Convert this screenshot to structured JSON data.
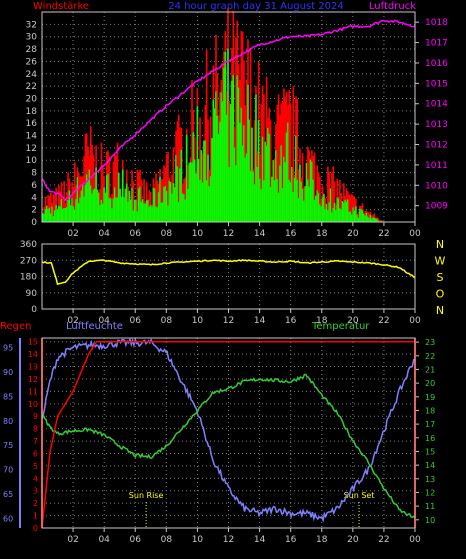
{
  "colors": {
    "background": "#000000",
    "frame": "#c8c8c8",
    "grid": "#808080",
    "wind_red": "#ff0000",
    "wind_green": "#00ff00",
    "pressure": "#ff00ff",
    "direction": "#ffff00",
    "humidity": "#8080ff",
    "temperature": "#33cc33",
    "rain": "#ff0000",
    "direction_letters": "#ffff00",
    "sun_labels": "#ffff00"
  },
  "header": {
    "left_label": "Windstärke",
    "center_label": "24 hour graph day 31 August 2024",
    "right_label": "Luftdruck"
  },
  "bottom_header": {
    "rain_label": "Regen",
    "humidity_label": "Luftfeuchte",
    "temperature_label": "Temperatur"
  },
  "direction_letters": [
    "N",
    "W",
    "S",
    "O",
    "N"
  ],
  "sun": {
    "rise_label": "Sun Rise",
    "set_label": "Sun Set"
  },
  "x_ticks": [
    "02",
    "04",
    "06",
    "08",
    "10",
    "12",
    "14",
    "16",
    "18",
    "20",
    "22",
    "00"
  ],
  "chart_data": [
    {
      "type": "bar",
      "name": "wind",
      "ylim": [
        0,
        34
      ],
      "y_ticks": [
        "0",
        "2",
        "4",
        "6",
        "8",
        "10",
        "12",
        "14",
        "16",
        "18",
        "20",
        "22",
        "24",
        "26",
        "28",
        "30",
        "32"
      ],
      "right_axis": {
        "ylim": [
          1008.2,
          1018.5
        ],
        "ticks": [
          "1009",
          "1010",
          "1011",
          "1012",
          "1013",
          "1014",
          "1015",
          "1016",
          "1017",
          "1018"
        ]
      },
      "x_hours": [
        0,
        24
      ],
      "gust_profile": [
        [
          0,
          4
        ],
        [
          1,
          5
        ],
        [
          2,
          8
        ],
        [
          3,
          14
        ],
        [
          4,
          10
        ],
        [
          5,
          12
        ],
        [
          6,
          8
        ],
        [
          7,
          5
        ],
        [
          8,
          11
        ],
        [
          9,
          16
        ],
        [
          10,
          21
        ],
        [
          11,
          25
        ],
        [
          12,
          30
        ],
        [
          13,
          28
        ],
        [
          14,
          22
        ],
        [
          15,
          18
        ],
        [
          16,
          20
        ],
        [
          17,
          13
        ],
        [
          18,
          9
        ],
        [
          19,
          7
        ],
        [
          20,
          4
        ],
        [
          21,
          2
        ],
        [
          22,
          0
        ],
        [
          23,
          0
        ],
        [
          24,
          0
        ]
      ],
      "avg_profile": [
        [
          0,
          2
        ],
        [
          1,
          2
        ],
        [
          2,
          4
        ],
        [
          3,
          7
        ],
        [
          4,
          5
        ],
        [
          5,
          6
        ],
        [
          6,
          4
        ],
        [
          7,
          3
        ],
        [
          8,
          6
        ],
        [
          9,
          8
        ],
        [
          10,
          12
        ],
        [
          11,
          15
        ],
        [
          12,
          18
        ],
        [
          13,
          17
        ],
        [
          14,
          13
        ],
        [
          15,
          10
        ],
        [
          16,
          11
        ],
        [
          17,
          7
        ],
        [
          18,
          5
        ],
        [
          19,
          3
        ],
        [
          20,
          2
        ],
        [
          21,
          1
        ],
        [
          22,
          0
        ],
        [
          23,
          0
        ],
        [
          24,
          0
        ]
      ],
      "pressure": [
        [
          0,
          1010.3
        ],
        [
          0.5,
          1009.7
        ],
        [
          1,
          1009.6
        ],
        [
          1.5,
          1009.3
        ],
        [
          2,
          1009.6
        ],
        [
          3,
          1010.3
        ],
        [
          4,
          1011.0
        ],
        [
          5,
          1011.8
        ],
        [
          6,
          1012.5
        ],
        [
          7,
          1013.2
        ],
        [
          8,
          1013.9
        ],
        [
          9,
          1014.5
        ],
        [
          10,
          1015.1
        ],
        [
          11,
          1015.6
        ],
        [
          12,
          1016.1
        ],
        [
          13,
          1016.5
        ],
        [
          14,
          1016.9
        ],
        [
          15,
          1017.1
        ],
        [
          16,
          1017.3
        ],
        [
          17,
          1017.3
        ],
        [
          18,
          1017.4
        ],
        [
          19,
          1017.6
        ],
        [
          20,
          1017.8
        ],
        [
          21,
          1017.8
        ],
        [
          22,
          1018.1
        ],
        [
          23,
          1018.0
        ],
        [
          24,
          1017.8
        ]
      ]
    },
    {
      "type": "line",
      "name": "wind direction",
      "ylim": [
        0,
        360
      ],
      "y_ticks": [
        "0",
        "90",
        "180",
        "270",
        "360"
      ],
      "x": [
        0,
        0.6,
        1,
        1.5,
        2,
        3,
        4,
        5,
        6,
        7,
        8,
        9,
        10,
        11,
        12,
        13,
        14,
        15,
        16,
        17,
        18,
        19,
        20,
        21,
        22,
        23,
        23.5,
        24
      ],
      "values": [
        260,
        255,
        140,
        150,
        200,
        265,
        270,
        255,
        250,
        245,
        255,
        260,
        265,
        270,
        265,
        270,
        265,
        260,
        265,
        255,
        260,
        265,
        260,
        255,
        245,
        230,
        200,
        175
      ]
    },
    {
      "type": "line",
      "name": "humidity / temperature / rain",
      "humidity_axis": {
        "ylim": [
          58,
          97
        ],
        "ticks": [
          "60",
          "65",
          "70",
          "75",
          "80",
          "85",
          "90",
          "95"
        ]
      },
      "rain_axis": {
        "ylim": [
          0,
          15.3
        ],
        "ticks": [
          "0",
          "1",
          "2",
          "3",
          "4",
          "5",
          "6",
          "7",
          "8",
          "9",
          "10",
          "11",
          "12",
          "13",
          "14",
          "15"
        ]
      },
      "temperature_axis": {
        "ylim": [
          9.4,
          23.3
        ],
        "ticks": [
          "10",
          "11",
          "12",
          "13",
          "14",
          "15",
          "16",
          "17",
          "18",
          "19",
          "20",
          "21",
          "22",
          "23"
        ]
      },
      "humidity": [
        [
          0,
          80
        ],
        [
          0.5,
          88
        ],
        [
          1,
          93
        ],
        [
          2,
          95
        ],
        [
          3,
          95.5
        ],
        [
          4,
          95.5
        ],
        [
          5,
          96
        ],
        [
          6,
          96
        ],
        [
          7,
          96
        ],
        [
          8,
          94
        ],
        [
          9,
          88
        ],
        [
          10,
          82
        ],
        [
          11,
          72
        ],
        [
          12,
          66
        ],
        [
          13,
          62
        ],
        [
          14,
          61
        ],
        [
          15,
          62
        ],
        [
          16,
          61
        ],
        [
          17,
          61
        ],
        [
          18,
          60
        ],
        [
          19,
          62
        ],
        [
          20,
          66
        ],
        [
          21,
          70
        ],
        [
          22,
          78
        ],
        [
          23,
          86
        ],
        [
          24,
          93
        ]
      ],
      "temperature": [
        [
          0,
          17.7
        ],
        [
          0.5,
          16.8
        ],
        [
          1,
          16.3
        ],
        [
          2,
          16.5
        ],
        [
          3,
          16.6
        ],
        [
          4,
          16.2
        ],
        [
          5,
          15.4
        ],
        [
          6,
          14.7
        ],
        [
          7,
          14.6
        ],
        [
          8,
          15.4
        ],
        [
          9,
          16.7
        ],
        [
          10,
          18.0
        ],
        [
          11,
          19.3
        ],
        [
          12,
          19.6
        ],
        [
          13,
          20.1
        ],
        [
          14,
          20.3
        ],
        [
          15,
          20.2
        ],
        [
          16,
          20.1
        ],
        [
          17,
          20.6
        ],
        [
          18,
          19.1
        ],
        [
          19,
          17.8
        ],
        [
          20,
          15.8
        ],
        [
          21,
          14.2
        ],
        [
          22,
          12.3
        ],
        [
          23,
          10.7
        ],
        [
          24,
          10.1
        ]
      ],
      "rain": [
        [
          0,
          0
        ],
        [
          0.5,
          6
        ],
        [
          1,
          9
        ],
        [
          2,
          11
        ],
        [
          3,
          14
        ],
        [
          3.5,
          15
        ],
        [
          24,
          15
        ]
      ],
      "sun_rise_hour": 6.7,
      "sun_set_hour": 20.4
    }
  ]
}
